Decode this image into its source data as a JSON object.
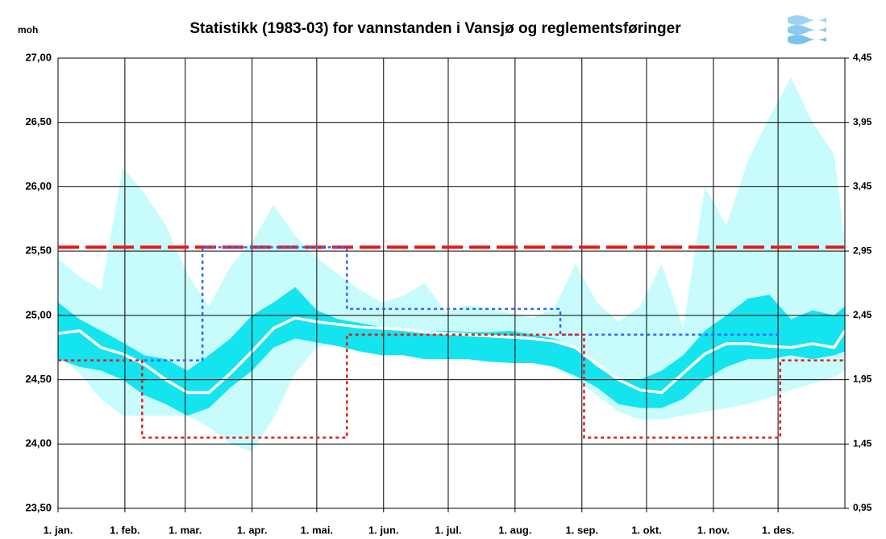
{
  "chart_data": {
    "type": "band-line",
    "title": "Statistikk (1983-03) for vannstanden i Vansjø og reglementsføringer",
    "ylabel": "moh",
    "grid": true,
    "xlim": [
      0,
      365
    ],
    "xticks": [
      {
        "value": 0,
        "label": "1. jan."
      },
      {
        "value": 31,
        "label": "1. feb."
      },
      {
        "value": 59,
        "label": "1. mar."
      },
      {
        "value": 90,
        "label": "1. apr."
      },
      {
        "value": 120,
        "label": "1. mai."
      },
      {
        "value": 151,
        "label": "1. jun."
      },
      {
        "value": 181,
        "label": "1. jul."
      },
      {
        "value": 212,
        "label": "1. aug."
      },
      {
        "value": 243,
        "label": "1. sep."
      },
      {
        "value": 273,
        "label": "1. okt."
      },
      {
        "value": 304,
        "label": "1. nov."
      },
      {
        "value": 334,
        "label": "1. des."
      }
    ],
    "ylim": [
      23.5,
      27.0
    ],
    "yticks": [
      {
        "value": 23.5,
        "label": "23,50"
      },
      {
        "value": 24.0,
        "label": "24,00"
      },
      {
        "value": 24.5,
        "label": "24,50"
      },
      {
        "value": 25.0,
        "label": "25,00"
      },
      {
        "value": 25.5,
        "label": "25,50"
      },
      {
        "value": 26.0,
        "label": "26,00"
      },
      {
        "value": 26.5,
        "label": "26,50"
      },
      {
        "value": 27.0,
        "label": "27,00"
      }
    ],
    "y2lim": [
      0.95,
      4.45
    ],
    "y2ticks": [
      {
        "value": 0.95,
        "label": "0,95"
      },
      {
        "value": 1.45,
        "label": "1,45"
      },
      {
        "value": 1.95,
        "label": "1,95"
      },
      {
        "value": 2.45,
        "label": "2,45"
      },
      {
        "value": 2.95,
        "label": "2,95"
      },
      {
        "value": 3.45,
        "label": "3,45"
      },
      {
        "value": 3.95,
        "label": "3,95"
      },
      {
        "value": 4.45,
        "label": "4,45"
      }
    ],
    "x": [
      0,
      10,
      20,
      30,
      40,
      50,
      60,
      70,
      80,
      90,
      100,
      110,
      120,
      130,
      140,
      150,
      160,
      170,
      180,
      190,
      200,
      210,
      220,
      230,
      240,
      250,
      260,
      270,
      280,
      290,
      300,
      310,
      320,
      330,
      340,
      350,
      360,
      365
    ],
    "bands": [
      {
        "color": "#c8fcfc",
        "upper": [
          25.44,
          25.3,
          25.2,
          26.15,
          25.95,
          25.7,
          25.32,
          25.07,
          25.38,
          25.57,
          25.86,
          25.62,
          25.45,
          25.32,
          25.2,
          25.1,
          25.15,
          25.25,
          25.02,
          25.08,
          25.05,
          25.02,
          24.98,
          25.05,
          25.4,
          25.1,
          24.95,
          25.07,
          25.4,
          24.9,
          26.0,
          25.7,
          26.2,
          26.54,
          26.85,
          26.5,
          26.25,
          25.57
        ],
        "lower": [
          24.69,
          24.55,
          24.35,
          24.22,
          24.22,
          24.22,
          24.22,
          24.13,
          24.0,
          23.94,
          24.2,
          24.55,
          24.75,
          24.79,
          24.79,
          24.8,
          24.8,
          24.78,
          24.73,
          24.72,
          24.71,
          24.69,
          24.67,
          24.62,
          24.5,
          24.38,
          24.25,
          24.19,
          24.19,
          24.22,
          24.25,
          24.28,
          24.31,
          24.36,
          24.42,
          24.47,
          24.52,
          24.57
        ]
      },
      {
        "color": "#14e4ee",
        "upper": [
          25.1,
          24.97,
          24.88,
          24.79,
          24.69,
          24.66,
          24.57,
          24.69,
          24.82,
          25.0,
          25.1,
          25.22,
          25.04,
          24.97,
          24.94,
          24.91,
          24.89,
          24.88,
          24.88,
          24.87,
          24.87,
          24.88,
          24.85,
          24.82,
          24.75,
          24.6,
          24.5,
          24.5,
          24.57,
          24.69,
          24.88,
          25.0,
          25.13,
          25.16,
          24.97,
          25.04,
          25.0,
          25.07
        ],
        "lower": [
          24.66,
          24.6,
          24.57,
          24.5,
          24.38,
          24.31,
          24.22,
          24.28,
          24.44,
          24.57,
          24.75,
          24.82,
          24.79,
          24.76,
          24.72,
          24.69,
          24.69,
          24.66,
          24.66,
          24.66,
          24.64,
          24.63,
          24.63,
          24.6,
          24.53,
          24.44,
          24.31,
          24.28,
          24.28,
          24.35,
          24.5,
          24.6,
          24.66,
          24.66,
          24.69,
          24.66,
          24.69,
          24.72
        ]
      }
    ],
    "lines": [
      {
        "color": "#ffffff",
        "values": [
          24.86,
          24.88,
          24.75,
          24.7,
          24.62,
          24.5,
          24.4,
          24.4,
          24.55,
          24.72,
          24.9,
          24.98,
          24.95,
          24.93,
          24.91,
          24.9,
          24.89,
          24.87,
          24.86,
          24.85,
          24.84,
          24.83,
          24.82,
          24.8,
          24.75,
          24.62,
          24.5,
          24.42,
          24.4,
          24.55,
          24.7,
          24.78,
          24.78,
          24.76,
          24.75,
          24.78,
          24.75,
          24.88
        ]
      }
    ],
    "steps": [
      {
        "color": "#e41a1a",
        "dash": "dashed",
        "x": [
          0,
          365
        ],
        "values": [
          25.53,
          25.53
        ]
      },
      {
        "color": "#3366ff",
        "dash": "dotted",
        "x": [
          40,
          67,
          67,
          134,
          134,
          233,
          233,
          335
        ],
        "values": [
          24.65,
          24.65,
          25.53,
          25.53,
          25.05,
          25.05,
          24.85,
          24.85
        ]
      },
      {
        "color": "#e41a1a",
        "dash": "dotted",
        "x": [
          0,
          39,
          39,
          134,
          134,
          244,
          244,
          335,
          335,
          365
        ],
        "values": [
          24.65,
          24.65,
          24.05,
          24.05,
          24.85,
          24.85,
          24.05,
          24.05,
          24.65,
          24.65
        ]
      }
    ]
  }
}
